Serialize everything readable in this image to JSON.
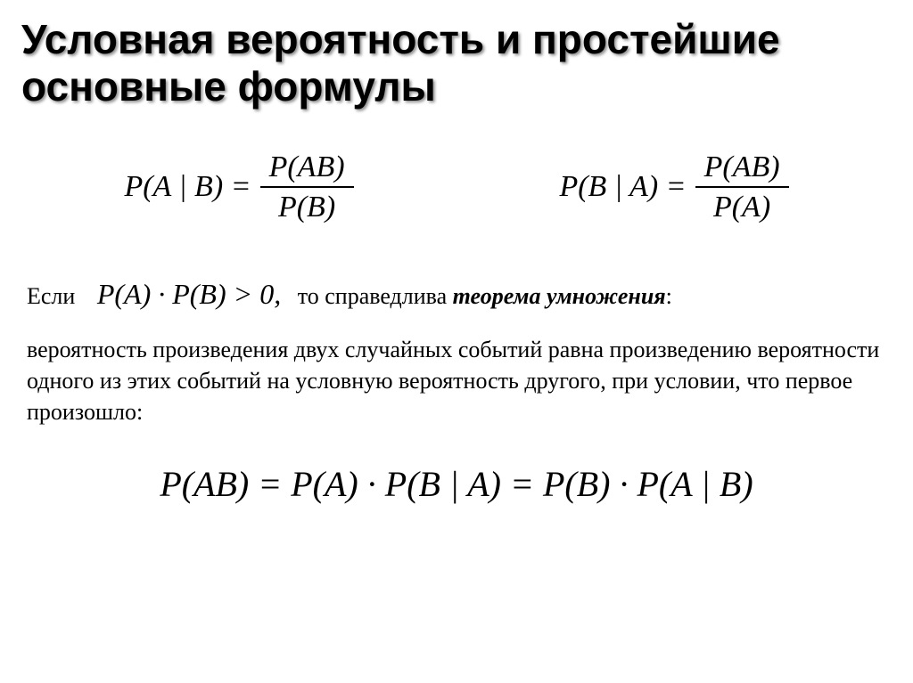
{
  "title": "Условная вероятность и простейшие основные формулы",
  "formula1": {
    "lhs": "P(A | B) =",
    "num": "P(AB)",
    "den": "P(B)"
  },
  "formula2": {
    "lhs": "P(B | A) =",
    "num": "P(AB)",
    "den": "P(A)"
  },
  "if_line": {
    "if": "Если",
    "math": "P(A) · P(B) > 0,",
    "tail": "то справедлива ",
    "theorem": "теорема умножения",
    "colon": ":"
  },
  "paragraph": "вероятность произведения двух случайных событий равна произведению вероятности одного из этих событий на условную вероятность другого, при условии, что первое произошло:",
  "big_eq": "P(AB) = P(A) · P(B | A) = P(B) · P(A | B)"
}
